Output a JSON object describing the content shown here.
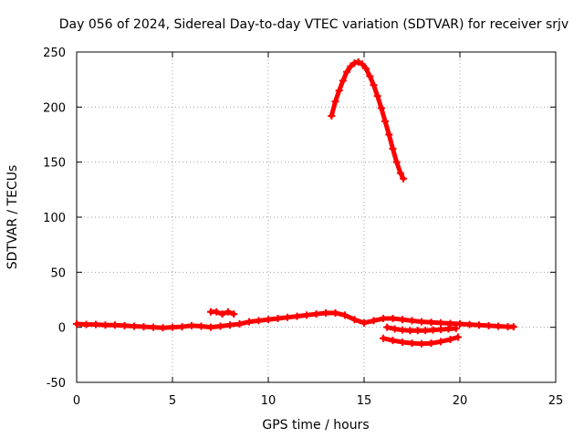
{
  "chart_data": {
    "type": "scatter",
    "title": "Day 056 of 2024, Sidereal Day-to-day VTEC variation (SDTVAR) for receiver srjv",
    "xlabel": "GPS time / hours",
    "ylabel": "SDTVAR / TECUs",
    "xlim": [
      0,
      25
    ],
    "ylim": [
      -50,
      250
    ],
    "x_ticks": [
      "0",
      "5",
      "10",
      "15",
      "20",
      "25"
    ],
    "y_ticks": [
      "-50",
      "0",
      "50",
      "100",
      "150",
      "200",
      "250"
    ],
    "grid": true,
    "legend": "none",
    "marker": "+",
    "color": "#ff0000",
    "series": [
      {
        "x": [
          0.0,
          0.5,
          1.0,
          1.5,
          2.0,
          2.5,
          3.0,
          3.5,
          4.0,
          4.5,
          5.0,
          5.5,
          6.0,
          6.5,
          7.0,
          7.5,
          8.0,
          8.5,
          9.0,
          9.5,
          10.0,
          10.5,
          11.0,
          11.5,
          12.0,
          12.5,
          13.0,
          13.5,
          14.0,
          14.5,
          15.0,
          15.5,
          16.0,
          16.5,
          17.0,
          17.5,
          18.0,
          18.5,
          19.0,
          19.5,
          20.0,
          20.5,
          21.0,
          21.5,
          22.0,
          22.5,
          22.8
        ],
        "y": [
          3,
          2.5,
          2.5,
          2,
          2,
          1.5,
          1,
          0.5,
          0,
          -0.5,
          0,
          0.5,
          1.5,
          1,
          0,
          1,
          2,
          3,
          5,
          6,
          7,
          8,
          9,
          10,
          11,
          12,
          13,
          13,
          11,
          7,
          4,
          6,
          8,
          8,
          7,
          6,
          5,
          4.5,
          4,
          3.5,
          3,
          2.5,
          2,
          1.5,
          1,
          0.5,
          0.5
        ]
      },
      {
        "x": [
          7.0,
          7.3,
          7.6,
          7.9,
          8.2
        ],
        "y": [
          14,
          14,
          12,
          14,
          12
        ]
      },
      {
        "x": [
          16.2,
          16.6,
          17.0,
          17.4,
          17.8,
          18.2,
          18.6,
          19.0,
          19.4,
          19.8
        ],
        "y": [
          0,
          -1.5,
          -2.5,
          -3,
          -3,
          -3,
          -2.5,
          -2,
          -1.5,
          -1
        ]
      },
      {
        "x": [
          16.0,
          16.5,
          17.0,
          17.5,
          18.0,
          18.5,
          19.0,
          19.5,
          19.9
        ],
        "y": [
          -10,
          -12,
          -13.5,
          -14.5,
          -15,
          -14.5,
          -13,
          -11,
          -9
        ]
      },
      {
        "x": [
          13.3,
          13.5,
          13.7,
          13.9,
          14.1,
          14.3,
          14.5,
          14.7,
          14.9,
          15.1,
          15.3,
          15.5,
          15.7,
          15.9,
          16.1,
          16.3,
          16.5,
          16.7,
          16.9,
          17.05
        ],
        "y": [
          192,
          205,
          215,
          224,
          232,
          237,
          240,
          241,
          239,
          235,
          228,
          220,
          210,
          199,
          187,
          175,
          162,
          150,
          140,
          135
        ]
      }
    ]
  }
}
